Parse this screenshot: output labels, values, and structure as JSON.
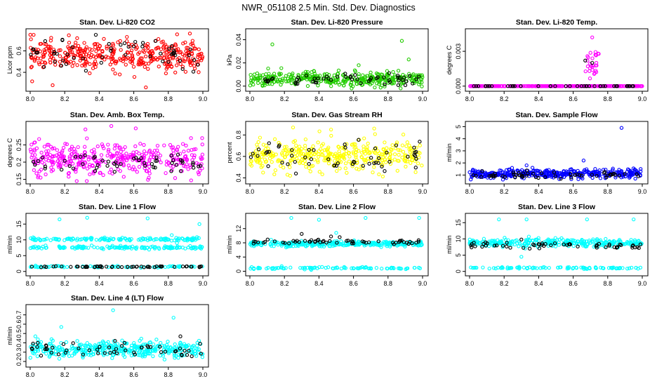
{
  "figure": {
    "title": "NWR_051108  2.5 Min. Std. Dev. Diagnostics"
  },
  "colors": {
    "red": "#ff0000",
    "green": "#22cc00",
    "magenta": "#ff00ff",
    "yellow": "#ffff00",
    "blue": "#0000ff",
    "cyan": "#00ffff",
    "black": "#000000"
  },
  "chart_data": [
    {
      "type": "scatter",
      "title": "Stan. Dev. Li-820 CO2",
      "ylabel": "Licor ppm",
      "xlim": [
        8.0,
        9.0
      ],
      "ylim": [
        0.25,
        0.78
      ],
      "xticks": [
        "8.0",
        "8.2",
        "8.4",
        "8.6",
        "8.8",
        "9.0"
      ],
      "yticks": [
        {
          "v": 0.4,
          "l": "0.4"
        },
        {
          "v": 0.6,
          "l": "0.6"
        }
      ],
      "series": [
        {
          "name": "all",
          "color": "red",
          "n": 380,
          "center": 0.56,
          "spread": 0.07,
          "out": [
            [
              8.13,
              0.28
            ],
            [
              8.67,
              0.26
            ],
            [
              8.02,
              0.75
            ],
            [
              8.56,
              0.73
            ],
            [
              8.95,
              0.46
            ]
          ]
        },
        {
          "name": "black",
          "color": "black",
          "n": 55,
          "center": 0.56,
          "spread": 0.06,
          "out": [
            [
              8.38,
              0.75
            ]
          ]
        }
      ]
    },
    {
      "type": "scatter",
      "title": "Stan. Dev. Li-820 Pressure",
      "ylabel": "kPa",
      "xlim": [
        8.0,
        9.0
      ],
      "ylim": [
        -0.002,
        0.047
      ],
      "xticks": [
        "8.0",
        "8.2",
        "8.4",
        "8.6",
        "8.8",
        "9.0"
      ],
      "yticks": [
        {
          "v": 0,
          "l": "0.00"
        },
        {
          "v": 0.02,
          "l": "0.02"
        },
        {
          "v": 0.04,
          "l": "0.04"
        }
      ],
      "series": [
        {
          "name": "all",
          "color": "green",
          "n": 380,
          "center": 0.006,
          "spread": 0.003,
          "out": [
            [
              8.13,
              0.036
            ],
            [
              8.88,
              0.039
            ],
            [
              8.92,
              0.023
            ],
            [
              8.63,
              0.018
            ]
          ]
        },
        {
          "name": "black",
          "color": "black",
          "n": 55,
          "center": 0.006,
          "spread": 0.003,
          "out": []
        }
      ]
    },
    {
      "type": "scatter",
      "title": "Stan. Dev. Li-820 Temp.",
      "ylabel": "degrees C",
      "xlim": [
        8.0,
        9.0
      ],
      "ylim": [
        -0.0002,
        0.0047
      ],
      "xticks": [
        "8.0",
        "8.2",
        "8.4",
        "8.6",
        "8.8",
        "9.0"
      ],
      "yticks": [
        {
          "v": 0,
          "l": "0.000"
        },
        {
          "v": 0.003,
          "l": "0.003"
        }
      ],
      "series": [
        {
          "name": "all",
          "color": "magenta",
          "n": 300,
          "center": 0,
          "spread": 0,
          "out": []
        },
        {
          "name": "upper",
          "color": "magenta",
          "n": 30,
          "center": 0.002,
          "spread": 0.0007,
          "xrange": [
            8.67,
            8.75
          ],
          "out": [
            [
              8.71,
              0.0042
            ]
          ]
        },
        {
          "name": "black",
          "color": "black",
          "n": 40,
          "center": 0,
          "spread": 0,
          "out": [
            [
              8.67,
              0.0022
            ],
            [
              8.71,
              0.002
            ]
          ]
        }
      ]
    },
    {
      "type": "scatter",
      "title": "Stan. Dev. Amb. Box Temp.",
      "ylabel": "degrees C",
      "xlim": [
        8.0,
        9.0
      ],
      "ylim": [
        0.145,
        0.31
      ],
      "xticks": [
        "8.0",
        "8.2",
        "8.4",
        "8.6",
        "8.8",
        "9.0"
      ],
      "yticks": [
        {
          "v": 0.15,
          "l": "0.15"
        },
        {
          "v": 0.2,
          "l": "0.2"
        },
        {
          "v": 0.25,
          "l": "0.25"
        }
      ],
      "series": [
        {
          "name": "all",
          "color": "magenta",
          "n": 380,
          "center": 0.21,
          "spread": 0.025,
          "out": [
            [
              8.47,
              0.305
            ],
            [
              8.32,
              0.295
            ],
            [
              8.06,
              0.155
            ]
          ]
        },
        {
          "name": "black",
          "color": "black",
          "n": 55,
          "center": 0.198,
          "spread": 0.012,
          "out": []
        }
      ]
    },
    {
      "type": "scatter",
      "title": "Stan. Dev. Gas Stream RH",
      "ylabel": "percent",
      "xlim": [
        8.0,
        9.0
      ],
      "ylim": [
        0.37,
        0.9
      ],
      "xticks": [
        "8.0",
        "8.2",
        "8.4",
        "8.6",
        "8.8",
        "9.0"
      ],
      "yticks": [
        {
          "v": 0.4,
          "l": "0.4"
        },
        {
          "v": 0.6,
          "l": "0.6"
        },
        {
          "v": 0.8,
          "l": "0.8"
        }
      ],
      "series": [
        {
          "name": "all",
          "color": "yellow",
          "n": 380,
          "center": 0.6,
          "spread": 0.07,
          "out": [
            [
              8.25,
              0.87
            ],
            [
              8.47,
              0.85
            ],
            [
              8.72,
              0.86
            ]
          ]
        },
        {
          "name": "black",
          "color": "black",
          "n": 55,
          "center": 0.6,
          "spread": 0.07,
          "out": []
        }
      ]
    },
    {
      "type": "scatter",
      "title": "Stan. Dev. Sample Flow",
      "ylabel": "ml/min",
      "xlim": [
        8.0,
        9.0
      ],
      "ylim": [
        0.5,
        5.2
      ],
      "xticks": [
        "8.0",
        "8.2",
        "8.4",
        "8.6",
        "8.8",
        "9.0"
      ],
      "yticks": [
        {
          "v": 1,
          "l": "1"
        },
        {
          "v": 2,
          "l": "2"
        },
        {
          "v": 3,
          "l": "3"
        },
        {
          "v": 4,
          "l": "4"
        },
        {
          "v": 5,
          "l": "5"
        }
      ],
      "series": [
        {
          "name": "all",
          "color": "blue",
          "n": 380,
          "center": 1.1,
          "spread": 0.18,
          "out": [
            [
              8.88,
              4.9
            ],
            [
              8.66,
              2.2
            ],
            [
              8.33,
              1.8
            ]
          ]
        },
        {
          "name": "black",
          "color": "black",
          "n": 55,
          "center": 1.05,
          "spread": 0.15,
          "out": []
        }
      ]
    },
    {
      "type": "scatter",
      "title": "Stan. Dev. Line 1 Flow",
      "ylabel": "ml/min",
      "xlim": [
        8.0,
        9.0
      ],
      "ylim": [
        -0.5,
        17.5
      ],
      "xticks": [
        "8.0",
        "8.2",
        "8.4",
        "8.6",
        "8.8",
        "9.0"
      ],
      "yticks": [
        {
          "v": 0,
          "l": "0"
        },
        {
          "v": 5,
          "l": "5"
        },
        {
          "v": 10,
          "l": "10"
        },
        {
          "v": 15,
          "l": "15"
        }
      ],
      "series": [
        {
          "name": "band-high",
          "color": "cyan",
          "n": 140,
          "center": 10.2,
          "spread": 0.25,
          "out": [
            [
              8.17,
              16.5
            ],
            [
              8.33,
              17
            ],
            [
              8.68,
              16.8
            ],
            [
              8.98,
              15
            ]
          ]
        },
        {
          "name": "band-mid",
          "color": "cyan",
          "n": 140,
          "center": 7.6,
          "spread": 0.25,
          "out": [
            [
              8.82,
              11.5
            ],
            [
              8.85,
              9
            ]
          ]
        },
        {
          "name": "band-low",
          "color": "cyan",
          "n": 80,
          "center": 1.5,
          "spread": 0.12,
          "out": []
        },
        {
          "name": "black",
          "color": "black",
          "n": 55,
          "center": 1.5,
          "spread": 0.1,
          "out": []
        }
      ]
    },
    {
      "type": "scatter",
      "title": "Stan. Dev. Line 2 Flow",
      "ylabel": "ml/min",
      "xlim": [
        8.0,
        9.0
      ],
      "ylim": [
        -0.5,
        15.5
      ],
      "xticks": [
        "8.0",
        "8.2",
        "8.4",
        "8.6",
        "8.8",
        "9.0"
      ],
      "yticks": [
        {
          "v": 0,
          "l": "0"
        },
        {
          "v": 4,
          "l": "4"
        },
        {
          "v": 8,
          "l": "8"
        },
        {
          "v": 12,
          "l": "12"
        }
      ],
      "series": [
        {
          "name": "band",
          "color": "cyan",
          "n": 300,
          "center": 7.7,
          "spread": 0.35,
          "out": [
            [
              8.24,
              15
            ],
            [
              8.4,
              14.5
            ],
            [
              8.67,
              15
            ],
            [
              8.98,
              15
            ],
            [
              8.5,
              10.8
            ]
          ]
        },
        {
          "name": "band-low",
          "color": "cyan",
          "n": 90,
          "center": 0.9,
          "spread": 0.15,
          "out": []
        },
        {
          "name": "black",
          "color": "black",
          "n": 55,
          "center": 8.2,
          "spread": 0.3,
          "out": [
            [
              8.3,
              10.5
            ],
            [
              8.47,
              9.8
            ],
            [
              8.52,
              9.6
            ]
          ]
        }
      ]
    },
    {
      "type": "scatter",
      "title": "Stan. Dev. Line 3 Flow",
      "ylabel": "ml/min",
      "xlim": [
        8.0,
        9.0
      ],
      "ylim": [
        -0.5,
        17
      ],
      "xticks": [
        "8.0",
        "8.2",
        "8.4",
        "8.6",
        "8.8",
        "9.0"
      ],
      "yticks": [
        {
          "v": 0,
          "l": "0"
        },
        {
          "v": 5,
          "l": "5"
        },
        {
          "v": 10,
          "l": "10"
        },
        {
          "v": 15,
          "l": "15"
        }
      ],
      "series": [
        {
          "name": "band",
          "color": "cyan",
          "n": 300,
          "center": 8.8,
          "spread": 0.6,
          "out": [
            [
              8.17,
              16
            ],
            [
              8.33,
              16
            ],
            [
              8.68,
              16
            ],
            [
              8.95,
              16
            ],
            [
              8.3,
              4.5
            ]
          ]
        },
        {
          "name": "band-low",
          "color": "cyan",
          "n": 90,
          "center": 1.1,
          "spread": 0.15,
          "out": []
        },
        {
          "name": "black",
          "color": "black",
          "n": 55,
          "center": 8.0,
          "spread": 0.5,
          "out": [
            [
              8.3,
              9.8
            ]
          ]
        }
      ]
    },
    {
      "type": "scatter",
      "title": "Stan. Dev. Line 4 (LT) Flow",
      "ylabel": "ml/min",
      "xlim": [
        8.0,
        9.0
      ],
      "ylim": [
        0.17,
        0.78
      ],
      "xticks": [
        "8.0",
        "8.2",
        "8.4",
        "8.6",
        "8.8",
        "9.0"
      ],
      "yticks": [
        {
          "v": 0.2,
          "l": "0.2"
        },
        {
          "v": 0.3,
          "l": "0.3"
        },
        {
          "v": 0.4,
          "l": "0.4"
        },
        {
          "v": 0.5,
          "l": "0.5"
        },
        {
          "v": 0.6,
          "l": "0.6"
        },
        {
          "v": 0.7,
          "l": "0.7"
        }
      ],
      "series": [
        {
          "name": "all",
          "color": "cyan",
          "n": 380,
          "center": 0.33,
          "spread": 0.04,
          "out": [
            [
              8.48,
              0.75
            ],
            [
              8.83,
              0.67
            ],
            [
              8.18,
              0.57
            ],
            [
              8.03,
              0.47
            ]
          ]
        },
        {
          "name": "black",
          "color": "black",
          "n": 55,
          "center": 0.33,
          "spread": 0.035,
          "out": [
            [
              8.87,
              0.47
            ]
          ]
        }
      ]
    }
  ]
}
